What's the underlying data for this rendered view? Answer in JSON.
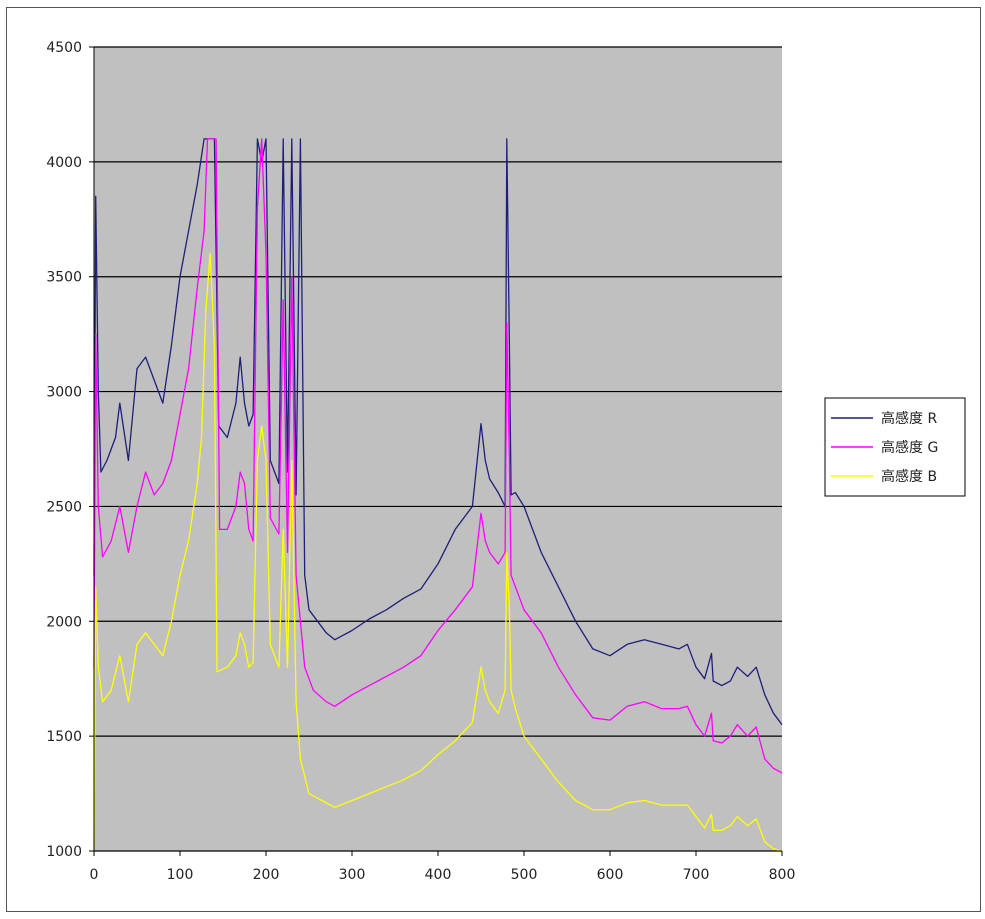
{
  "chart_data": {
    "type": "line",
    "xlim": [
      0,
      800
    ],
    "ylim": [
      1000,
      4500
    ],
    "x_ticks": [
      "0",
      "100",
      "200",
      "300",
      "400",
      "500",
      "600",
      "700",
      "800"
    ],
    "y_ticks": [
      "1000",
      "1500",
      "2000",
      "2500",
      "3000",
      "3500",
      "4000",
      "4500"
    ],
    "grid": "horizontal",
    "plot_background": "#c0c0c0",
    "legend_position": "right",
    "series": [
      {
        "name": "高感度 R",
        "color": "#1f1f7a",
        "points": [
          [
            0,
            2200
          ],
          [
            2,
            3850
          ],
          [
            5,
            3000
          ],
          [
            8,
            2650
          ],
          [
            15,
            2700
          ],
          [
            25,
            2800
          ],
          [
            30,
            2950
          ],
          [
            40,
            2700
          ],
          [
            50,
            3100
          ],
          [
            60,
            3150
          ],
          [
            70,
            3050
          ],
          [
            80,
            2950
          ],
          [
            90,
            3200
          ],
          [
            100,
            3500
          ],
          [
            110,
            3700
          ],
          [
            120,
            3900
          ],
          [
            128,
            4100
          ],
          [
            135,
            4100
          ],
          [
            140,
            4100
          ],
          [
            145,
            2850
          ],
          [
            155,
            2800
          ],
          [
            165,
            2950
          ],
          [
            170,
            3150
          ],
          [
            175,
            2950
          ],
          [
            180,
            2850
          ],
          [
            185,
            2900
          ],
          [
            190,
            4100
          ],
          [
            195,
            4000
          ],
          [
            200,
            4100
          ],
          [
            205,
            2700
          ],
          [
            215,
            2600
          ],
          [
            220,
            4100
          ],
          [
            225,
            2650
          ],
          [
            230,
            4100
          ],
          [
            235,
            2550
          ],
          [
            240,
            4100
          ],
          [
            245,
            2200
          ],
          [
            250,
            2050
          ],
          [
            270,
            1950
          ],
          [
            280,
            1920
          ],
          [
            300,
            1960
          ],
          [
            320,
            2010
          ],
          [
            340,
            2050
          ],
          [
            360,
            2100
          ],
          [
            380,
            2140
          ],
          [
            400,
            2250
          ],
          [
            420,
            2400
          ],
          [
            440,
            2500
          ],
          [
            450,
            2860
          ],
          [
            455,
            2700
          ],
          [
            460,
            2620
          ],
          [
            470,
            2560
          ],
          [
            478,
            2500
          ],
          [
            480,
            4100
          ],
          [
            483,
            3200
          ],
          [
            485,
            2550
          ],
          [
            490,
            2560
          ],
          [
            500,
            2500
          ],
          [
            520,
            2300
          ],
          [
            540,
            2150
          ],
          [
            560,
            2000
          ],
          [
            580,
            1880
          ],
          [
            600,
            1850
          ],
          [
            620,
            1900
          ],
          [
            640,
            1920
          ],
          [
            660,
            1900
          ],
          [
            680,
            1880
          ],
          [
            690,
            1900
          ],
          [
            700,
            1800
          ],
          [
            710,
            1750
          ],
          [
            718,
            1860
          ],
          [
            720,
            1740
          ],
          [
            730,
            1720
          ],
          [
            740,
            1740
          ],
          [
            748,
            1800
          ],
          [
            760,
            1760
          ],
          [
            770,
            1800
          ],
          [
            780,
            1680
          ],
          [
            790,
            1600
          ],
          [
            800,
            1550
          ]
        ]
      },
      {
        "name": "高感度 G",
        "color": "#ff00ff",
        "points": [
          [
            0,
            1800
          ],
          [
            2,
            3250
          ],
          [
            5,
            2500
          ],
          [
            10,
            2280
          ],
          [
            20,
            2350
          ],
          [
            30,
            2500
          ],
          [
            40,
            2300
          ],
          [
            50,
            2500
          ],
          [
            60,
            2650
          ],
          [
            70,
            2550
          ],
          [
            80,
            2600
          ],
          [
            90,
            2700
          ],
          [
            100,
            2900
          ],
          [
            110,
            3100
          ],
          [
            120,
            3450
          ],
          [
            128,
            3700
          ],
          [
            132,
            4100
          ],
          [
            138,
            4100
          ],
          [
            142,
            4100
          ],
          [
            146,
            2400
          ],
          [
            155,
            2400
          ],
          [
            165,
            2500
          ],
          [
            170,
            2650
          ],
          [
            175,
            2600
          ],
          [
            180,
            2400
          ],
          [
            185,
            2350
          ],
          [
            190,
            3800
          ],
          [
            195,
            4100
          ],
          [
            200,
            3600
          ],
          [
            205,
            2450
          ],
          [
            215,
            2380
          ],
          [
            220,
            3400
          ],
          [
            225,
            2300
          ],
          [
            230,
            3500
          ],
          [
            235,
            2200
          ],
          [
            240,
            2000
          ],
          [
            245,
            1800
          ],
          [
            255,
            1700
          ],
          [
            270,
            1650
          ],
          [
            280,
            1630
          ],
          [
            300,
            1680
          ],
          [
            320,
            1720
          ],
          [
            340,
            1760
          ],
          [
            360,
            1800
          ],
          [
            380,
            1850
          ],
          [
            400,
            1960
          ],
          [
            420,
            2050
          ],
          [
            440,
            2150
          ],
          [
            450,
            2470
          ],
          [
            455,
            2350
          ],
          [
            460,
            2300
          ],
          [
            470,
            2250
          ],
          [
            478,
            2300
          ],
          [
            480,
            3300
          ],
          [
            483,
            2700
          ],
          [
            485,
            2200
          ],
          [
            490,
            2150
          ],
          [
            500,
            2050
          ],
          [
            520,
            1950
          ],
          [
            540,
            1800
          ],
          [
            560,
            1680
          ],
          [
            580,
            1580
          ],
          [
            600,
            1570
          ],
          [
            620,
            1630
          ],
          [
            640,
            1650
          ],
          [
            660,
            1620
          ],
          [
            680,
            1620
          ],
          [
            690,
            1630
          ],
          [
            700,
            1550
          ],
          [
            710,
            1500
          ],
          [
            718,
            1600
          ],
          [
            720,
            1480
          ],
          [
            730,
            1470
          ],
          [
            740,
            1500
          ],
          [
            748,
            1550
          ],
          [
            760,
            1500
          ],
          [
            770,
            1540
          ],
          [
            780,
            1400
          ],
          [
            790,
            1360
          ],
          [
            800,
            1340
          ]
        ]
      },
      {
        "name": "高感度 B",
        "color": "#ffff00",
        "points": [
          [
            0,
            1000
          ],
          [
            2,
            2150
          ],
          [
            5,
            1800
          ],
          [
            10,
            1650
          ],
          [
            20,
            1700
          ],
          [
            30,
            1850
          ],
          [
            40,
            1650
          ],
          [
            50,
            1900
          ],
          [
            60,
            1950
          ],
          [
            70,
            1900
          ],
          [
            80,
            1850
          ],
          [
            90,
            2000
          ],
          [
            100,
            2200
          ],
          [
            110,
            2350
          ],
          [
            120,
            2600
          ],
          [
            125,
            2800
          ],
          [
            130,
            3350
          ],
          [
            135,
            3600
          ],
          [
            140,
            3200
          ],
          [
            143,
            1780
          ],
          [
            155,
            1800
          ],
          [
            165,
            1850
          ],
          [
            170,
            1950
          ],
          [
            175,
            1900
          ],
          [
            180,
            1800
          ],
          [
            185,
            1820
          ],
          [
            190,
            2700
          ],
          [
            195,
            2850
          ],
          [
            200,
            2700
          ],
          [
            205,
            1900
          ],
          [
            215,
            1800
          ],
          [
            220,
            2400
          ],
          [
            225,
            1800
          ],
          [
            230,
            2700
          ],
          [
            235,
            1650
          ],
          [
            240,
            1400
          ],
          [
            250,
            1250
          ],
          [
            265,
            1220
          ],
          [
            280,
            1190
          ],
          [
            300,
            1220
          ],
          [
            320,
            1250
          ],
          [
            340,
            1280
          ],
          [
            360,
            1310
          ],
          [
            380,
            1350
          ],
          [
            400,
            1420
          ],
          [
            420,
            1480
          ],
          [
            440,
            1560
          ],
          [
            450,
            1800
          ],
          [
            455,
            1700
          ],
          [
            460,
            1650
          ],
          [
            470,
            1600
          ],
          [
            478,
            1700
          ],
          [
            480,
            2300
          ],
          [
            483,
            2050
          ],
          [
            485,
            1700
          ],
          [
            490,
            1620
          ],
          [
            500,
            1500
          ],
          [
            520,
            1400
          ],
          [
            540,
            1300
          ],
          [
            560,
            1220
          ],
          [
            580,
            1180
          ],
          [
            600,
            1180
          ],
          [
            620,
            1210
          ],
          [
            640,
            1220
          ],
          [
            660,
            1200
          ],
          [
            680,
            1200
          ],
          [
            690,
            1200
          ],
          [
            700,
            1150
          ],
          [
            710,
            1100
          ],
          [
            718,
            1160
          ],
          [
            720,
            1090
          ],
          [
            730,
            1090
          ],
          [
            740,
            1110
          ],
          [
            748,
            1150
          ],
          [
            760,
            1110
          ],
          [
            770,
            1140
          ],
          [
            780,
            1040
          ],
          [
            790,
            1010
          ],
          [
            800,
            1000
          ]
        ]
      }
    ]
  }
}
